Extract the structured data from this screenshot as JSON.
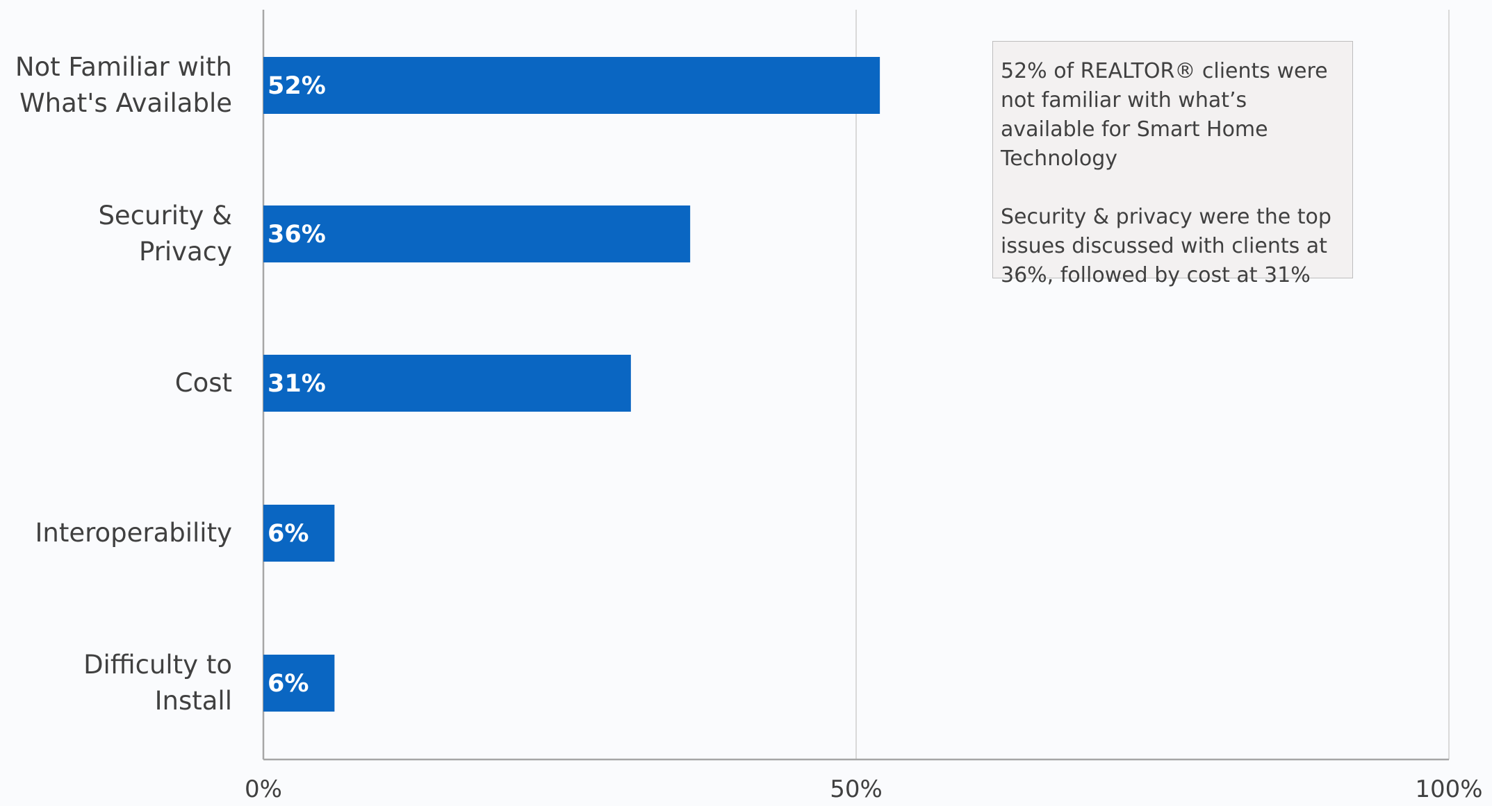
{
  "chart_data": {
    "type": "bar",
    "orientation": "horizontal",
    "categories": [
      "Not Familiar with\nWhat's Available",
      "Security & Privacy",
      "Cost",
      "Interoperability",
      "Difficulty to Install"
    ],
    "values": [
      52,
      36,
      31,
      6,
      6
    ],
    "value_labels": [
      "52%",
      "36%",
      "31%",
      "6%",
      "6%"
    ],
    "color": "#0a66c2",
    "xlim": [
      0,
      100
    ],
    "xticks": [
      {
        "value": 0,
        "label": "0%"
      },
      {
        "value": 50,
        "label": "50%"
      },
      {
        "value": 100,
        "label": "100%"
      }
    ],
    "grid": true,
    "annotations": [
      "52% of REALTOR® clients were not familiar with what’s available for Smart Home Technology",
      "Security & privacy were the top issues discussed with clients at 36%, followed by cost at 31%"
    ]
  }
}
